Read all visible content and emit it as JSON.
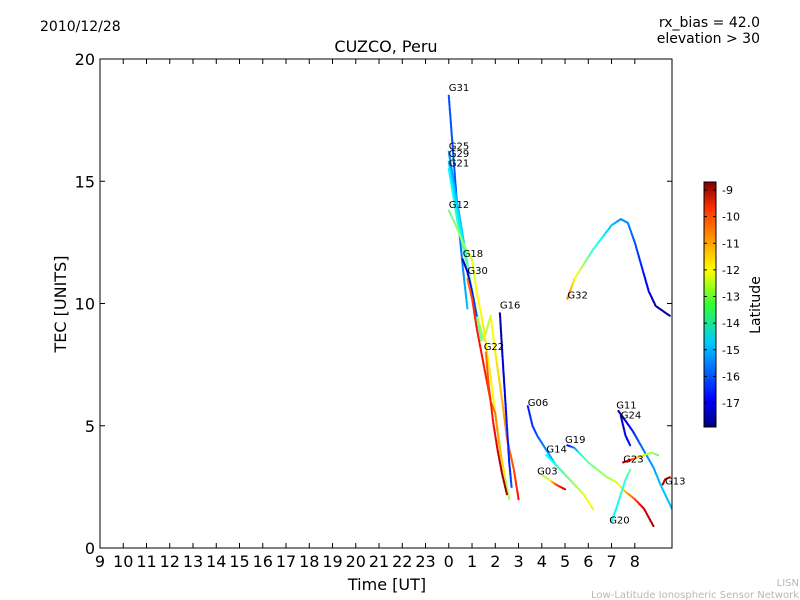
{
  "header": {
    "date": "2010/12/28",
    "rx_bias": "rx_bias = 42.0",
    "elevation": "elevation > 30"
  },
  "footer": {
    "org_short": "LISN",
    "org_long": "Low-Latitude Ionospheric Sensor Network"
  },
  "chart_data": {
    "type": "scatter",
    "title": "CUZCO, Peru",
    "xlabel": "Time [UT]",
    "ylabel": "TEC [UNITS]",
    "x_tick_labels": [
      "9",
      "10",
      "11",
      "12",
      "13",
      "14",
      "15",
      "16",
      "17",
      "18",
      "19",
      "20",
      "21",
      "22",
      "23",
      "0",
      "1",
      "2",
      "3",
      "4",
      "5",
      "6",
      "7",
      "8"
    ],
    "xlim": [
      9,
      33.6
    ],
    "ylim": [
      0,
      20
    ],
    "y_ticks": [
      0,
      5,
      10,
      15,
      20
    ],
    "grid": false,
    "colorbar": {
      "label": "Latitude",
      "min": -17.9,
      "max": -8.7,
      "ticks": [
        -9,
        -10,
        -11,
        -12,
        -13,
        -14,
        -15,
        -16,
        -17
      ],
      "colormap": "jet"
    },
    "series": [
      {
        "name": "G31",
        "label_at": [
          24,
          18.7
        ],
        "points": [
          [
            24.0,
            18.5,
            -16.0
          ],
          [
            24.2,
            16.0,
            -16.0
          ],
          [
            24.4,
            13.5,
            -16.0
          ],
          [
            24.6,
            11.5,
            -15.5
          ],
          [
            24.8,
            9.8,
            -15.0
          ]
        ]
      },
      {
        "name": "G25",
        "label_at": [
          24,
          16.3
        ],
        "points": [
          [
            24.0,
            16.2,
            -15.5
          ],
          [
            24.3,
            14.5,
            -15.2
          ],
          [
            24.6,
            12.8,
            -15.0
          ],
          [
            24.9,
            11.0,
            -14.5
          ],
          [
            25.2,
            9.5,
            -14.0
          ]
        ]
      },
      {
        "name": "G29",
        "label_at": [
          24,
          16.0
        ],
        "points": [
          [
            24.0,
            15.8,
            -15.0
          ],
          [
            24.3,
            14.2,
            -14.8
          ],
          [
            24.6,
            12.6,
            -14.5
          ],
          [
            25.0,
            10.5,
            -14.0
          ],
          [
            25.4,
            8.5,
            -13.5
          ]
        ]
      },
      {
        "name": "G21",
        "label_at": [
          24,
          15.6
        ],
        "points": [
          [
            24.0,
            15.5,
            -14.5
          ],
          [
            24.4,
            13.2,
            -14.0
          ],
          [
            24.8,
            11.5,
            -13.5
          ],
          [
            25.2,
            9.6,
            -13.0
          ],
          [
            25.5,
            8.5,
            -13.0
          ],
          [
            25.8,
            9.5,
            -12.5
          ],
          [
            26.0,
            8.0,
            -12.0
          ],
          [
            26.3,
            6.0,
            -11.5
          ],
          [
            26.5,
            4.5,
            -11.0
          ],
          [
            26.8,
            3.2,
            -10.5
          ],
          [
            27.0,
            2.0,
            -10.0
          ]
        ]
      },
      {
        "name": "G12",
        "label_at": [
          24,
          13.9
        ],
        "points": [
          [
            24.0,
            13.8,
            -13.5
          ],
          [
            24.3,
            13.2,
            -13.2
          ],
          [
            24.6,
            12.5,
            -13.0
          ],
          [
            25.0,
            11.8,
            -12.5
          ],
          [
            25.2,
            10.5,
            -12.2
          ],
          [
            25.5,
            9.0,
            -12.0
          ],
          [
            25.8,
            7.0,
            -12.0
          ],
          [
            26.0,
            5.5,
            -12.5
          ],
          [
            26.3,
            3.5,
            -12.8
          ],
          [
            26.6,
            2.0,
            -13.0
          ]
        ]
      },
      {
        "name": "G18",
        "label_at": [
          24.6,
          11.9
        ],
        "points": [
          [
            24.6,
            11.8,
            -17.5
          ],
          [
            24.8,
            11.3,
            -17.0
          ],
          [
            25.0,
            10.5,
            -16.5
          ],
          [
            25.2,
            9.5,
            -16.0
          ]
        ]
      },
      {
        "name": "G30",
        "label_at": [
          24.8,
          11.2
        ],
        "points": [
          [
            24.8,
            11.0,
            -11.0
          ],
          [
            25.0,
            10.2,
            -10.5
          ],
          [
            25.2,
            9.0,
            -10.0
          ],
          [
            25.5,
            7.5,
            -10.0
          ],
          [
            25.8,
            6.0,
            -10.5
          ],
          [
            26.0,
            5.5,
            -11.0
          ],
          [
            26.2,
            4.0,
            -11.5
          ],
          [
            26.4,
            3.0,
            -12.0
          ]
        ]
      },
      {
        "name": "G16",
        "label_at": [
          26.2,
          9.8
        ],
        "points": [
          [
            26.2,
            9.6,
            -17.5
          ],
          [
            26.3,
            8.0,
            -17.3
          ],
          [
            26.4,
            6.5,
            -17.0
          ],
          [
            26.5,
            5.0,
            -16.5
          ],
          [
            26.6,
            3.5,
            -16.5
          ],
          [
            26.7,
            2.5,
            -16.0
          ]
        ]
      },
      {
        "name": "G22",
        "label_at": [
          25.5,
          8.1
        ],
        "points": [
          [
            25.6,
            8.0,
            -11.0
          ],
          [
            25.7,
            6.8,
            -10.5
          ],
          [
            25.9,
            5.2,
            -10.0
          ],
          [
            26.1,
            4.0,
            -9.5
          ],
          [
            26.3,
            3.0,
            -9.0
          ],
          [
            26.5,
            2.2,
            -9.0
          ]
        ]
      },
      {
        "name": "G32",
        "label_at": [
          29.1,
          10.2
        ],
        "points": [
          [
            29.1,
            10.2,
            -11.0
          ],
          [
            29.4,
            11.0,
            -12.0
          ],
          [
            29.8,
            11.6,
            -13.0
          ],
          [
            30.2,
            12.2,
            -14.0
          ],
          [
            30.6,
            12.7,
            -14.5
          ],
          [
            31.0,
            13.2,
            -15.0
          ],
          [
            31.4,
            13.45,
            -15.5
          ],
          [
            31.7,
            13.3,
            -15.5
          ],
          [
            32.0,
            12.5,
            -16.0
          ],
          [
            32.3,
            11.5,
            -16.5
          ],
          [
            32.6,
            10.5,
            -17.0
          ],
          [
            32.9,
            9.9,
            -17.5
          ],
          [
            33.5,
            9.5,
            -17.8
          ]
        ]
      },
      {
        "name": "G06",
        "label_at": [
          27.4,
          5.8
        ],
        "points": [
          [
            27.4,
            5.8,
            -16.5
          ],
          [
            27.6,
            5.0,
            -16.3
          ],
          [
            27.8,
            4.6,
            -16.0
          ],
          [
            28.2,
            4.0,
            -15.5
          ],
          [
            28.6,
            3.4,
            -15.0
          ],
          [
            29.0,
            3.0,
            -14.5
          ],
          [
            29.5,
            2.5,
            -14.0
          ]
        ]
      },
      {
        "name": "G14",
        "label_at": [
          28.2,
          3.9
        ],
        "points": [
          [
            28.2,
            3.8,
            -14.5
          ],
          [
            28.6,
            3.4,
            -14.0
          ],
          [
            29.0,
            3.0,
            -13.5
          ],
          [
            29.4,
            2.6,
            -13.0
          ],
          [
            29.8,
            2.2,
            -12.5
          ],
          [
            30.2,
            1.6,
            -12.0
          ]
        ]
      },
      {
        "name": "G19",
        "label_at": [
          29.0,
          4.3
        ],
        "points": [
          [
            29.1,
            4.2,
            -17.0
          ],
          [
            29.4,
            4.1,
            -15.5
          ],
          [
            29.7,
            3.8,
            -14.0
          ],
          [
            30.0,
            3.5,
            -13.5
          ],
          [
            30.4,
            3.2,
            -13.2
          ],
          [
            30.8,
            2.9,
            -13.0
          ],
          [
            31.2,
            2.7,
            -12.5
          ],
          [
            31.6,
            2.3,
            -11.5
          ],
          [
            32.0,
            2.0,
            -10.5
          ],
          [
            32.4,
            1.6,
            -9.5
          ],
          [
            32.8,
            0.9,
            -9.0
          ]
        ]
      },
      {
        "name": "G03",
        "label_at": [
          27.8,
          3.0
        ],
        "points": [
          [
            28.0,
            3.0,
            -13.0
          ],
          [
            28.3,
            2.8,
            -12.5
          ],
          [
            28.6,
            2.6,
            -10.5
          ],
          [
            29.0,
            2.4,
            -9.5
          ]
        ]
      },
      {
        "name": "G11",
        "label_at": [
          31.2,
          5.7
        ],
        "points": [
          [
            31.3,
            5.6,
            -17.5
          ],
          [
            31.6,
            5.2,
            -17.0
          ],
          [
            31.9,
            4.8,
            -16.5
          ],
          [
            32.2,
            4.3,
            -16.0
          ],
          [
            32.5,
            3.8,
            -15.5
          ],
          [
            32.8,
            3.3,
            -15.3
          ],
          [
            33.1,
            2.6,
            -15.0
          ],
          [
            33.6,
            1.6,
            -15.0
          ]
        ]
      },
      {
        "name": "G24",
        "label_at": [
          31.4,
          5.3
        ],
        "points": [
          [
            31.4,
            5.4,
            -17.5
          ],
          [
            31.5,
            5.0,
            -17.3
          ],
          [
            31.6,
            4.6,
            -17.0
          ],
          [
            31.8,
            4.2,
            -16.5
          ]
        ]
      },
      {
        "name": "G23",
        "label_at": [
          31.5,
          3.5
        ],
        "points": [
          [
            31.5,
            3.5,
            -9.0
          ],
          [
            31.8,
            3.6,
            -10.0
          ],
          [
            32.1,
            3.7,
            -11.5
          ],
          [
            32.4,
            3.8,
            -12.5
          ],
          [
            32.7,
            3.9,
            -13.0
          ],
          [
            33.0,
            3.8,
            -13.5
          ]
        ]
      },
      {
        "name": "G20",
        "label_at": [
          30.9,
          1.0
        ],
        "points": [
          [
            31.0,
            1.1,
            -14.5
          ],
          [
            31.2,
            1.6,
            -14.5
          ],
          [
            31.4,
            2.2,
            -14.0
          ],
          [
            31.6,
            2.8,
            -14.0
          ],
          [
            31.8,
            3.2,
            -13.5
          ]
        ]
      },
      {
        "name": "G13",
        "label_at": [
          33.3,
          2.6
        ],
        "points": [
          [
            33.2,
            2.6,
            -9.0
          ],
          [
            33.3,
            2.8,
            -9.5
          ],
          [
            33.5,
            2.9,
            -10.0
          ]
        ]
      }
    ]
  }
}
